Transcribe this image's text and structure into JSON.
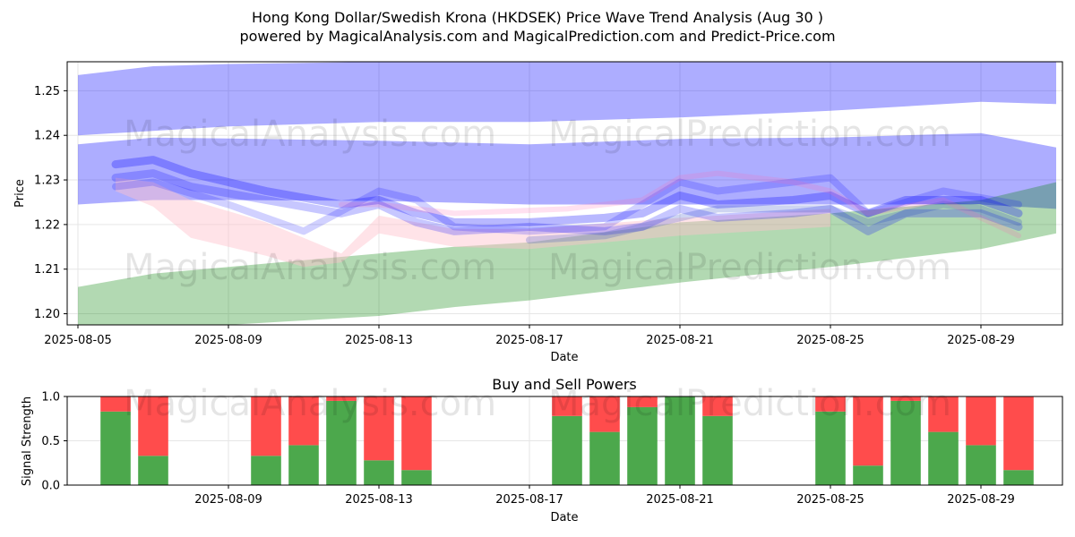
{
  "chart_data": [
    {
      "type": "area",
      "title": "Hong Kong Dollar/Swedish Krona (HKDSEK) Price Wave Trend Analysis (Aug 30 )",
      "subtitle": "powered by MagicalAnalysis.com and MagicalPrediction.com and Predict-Price.com",
      "xlabel": "Date",
      "ylabel": "Price",
      "ylim": [
        1.1975,
        1.2565
      ],
      "y_ticks": [
        1.2,
        1.21,
        1.22,
        1.23,
        1.24,
        1.25
      ],
      "y_tick_labels": [
        "1.20",
        "1.21",
        "1.22",
        "1.23",
        "1.24",
        "1.25"
      ],
      "x_ticks": [
        "2025-08-05",
        "2025-08-09",
        "2025-08-13",
        "2025-08-17",
        "2025-08-21",
        "2025-08-25",
        "2025-08-29"
      ],
      "watermarks": [
        "MagicalAnalysis.com",
        "MagicalPrediction.com",
        "MagicalAnalysis.com",
        "MagicalPrediction.com"
      ],
      "grid": true,
      "bands": [
        {
          "color": "#0000ff",
          "opacity": 0.32,
          "x": [
            "2025-08-05",
            "2025-08-07",
            "2025-08-09",
            "2025-08-13",
            "2025-08-17",
            "2025-08-21",
            "2025-08-25",
            "2025-08-29",
            "2025-08-31"
          ],
          "upper": [
            1.2535,
            1.2555,
            1.256,
            1.2565,
            1.2565,
            1.2565,
            1.2565,
            1.2565,
            1.2565
          ],
          "lower": [
            1.24,
            1.241,
            1.242,
            1.243,
            1.243,
            1.244,
            1.2455,
            1.2475,
            1.247
          ]
        },
        {
          "color": "#0000ff",
          "opacity": 0.32,
          "x": [
            "2025-08-05",
            "2025-08-07",
            "2025-08-09",
            "2025-08-13",
            "2025-08-17",
            "2025-08-21",
            "2025-08-25",
            "2025-08-29",
            "2025-08-31"
          ],
          "upper": [
            1.238,
            1.2395,
            1.2393,
            1.2388,
            1.238,
            1.2392,
            1.2395,
            1.2405,
            1.2373
          ],
          "lower": [
            1.2245,
            1.2255,
            1.2255,
            1.2253,
            1.2245,
            1.2245,
            1.2245,
            1.2245,
            1.2235
          ]
        },
        {
          "color": "#008000",
          "opacity": 0.3,
          "x": [
            "2025-08-05",
            "2025-08-07",
            "2025-08-09",
            "2025-08-13",
            "2025-08-15",
            "2025-08-17",
            "2025-08-21",
            "2025-08-25",
            "2025-08-29",
            "2025-08-31"
          ],
          "upper": [
            1.206,
            1.209,
            1.2105,
            1.2135,
            1.215,
            1.216,
            1.2205,
            1.2225,
            1.2255,
            1.2295
          ],
          "lower": [
            1.1975,
            1.1975,
            1.1975,
            1.1995,
            1.2015,
            1.203,
            1.207,
            1.2105,
            1.2145,
            1.218
          ]
        },
        {
          "color": "#ffc0cb",
          "opacity": 0.45,
          "x": [
            "2025-08-06",
            "2025-08-07",
            "2025-08-08",
            "2025-08-10",
            "2025-08-11",
            "2025-08-12",
            "2025-08-13",
            "2025-08-15",
            "2025-08-17",
            "2025-08-21",
            "2025-08-25"
          ],
          "upper": [
            1.2305,
            1.2295,
            1.2255,
            1.2205,
            1.217,
            1.2135,
            1.222,
            1.219,
            1.219,
            1.2215,
            1.2235
          ],
          "lower": [
            1.2275,
            1.224,
            1.217,
            1.213,
            1.2105,
            1.2115,
            1.218,
            1.215,
            1.2145,
            1.2175,
            1.2195
          ]
        }
      ],
      "series": [
        {
          "color": "#0000ff",
          "opacity": 0.28,
          "width": 9,
          "x": [
            "2025-08-06",
            "2025-08-07",
            "2025-08-08",
            "2025-08-10",
            "2025-08-12",
            "2025-08-13",
            "2025-08-14",
            "2025-08-15",
            "2025-08-17",
            "2025-08-19",
            "2025-08-20",
            "2025-08-21",
            "2025-08-22",
            "2025-08-24",
            "2025-08-25",
            "2025-08-26",
            "2025-08-27",
            "2025-08-29",
            "2025-08-30"
          ],
          "y": [
            1.2335,
            1.2345,
            1.2315,
            1.2275,
            1.2245,
            1.2255,
            1.2225,
            1.2205,
            1.2205,
            1.2215,
            1.2225,
            1.2265,
            1.2245,
            1.2255,
            1.2265,
            1.2225,
            1.2255,
            1.2255,
            1.2225
          ]
        },
        {
          "color": "#0000ff",
          "opacity": 0.22,
          "width": 9,
          "x": [
            "2025-08-06",
            "2025-08-07",
            "2025-08-08",
            "2025-08-10",
            "2025-08-12",
            "2025-08-13",
            "2025-08-14",
            "2025-08-15",
            "2025-08-17",
            "2025-08-19",
            "2025-08-20",
            "2025-08-21",
            "2025-08-22",
            "2025-08-24",
            "2025-08-25",
            "2025-08-26",
            "2025-08-27",
            "2025-08-29",
            "2025-08-30"
          ],
          "y": [
            1.2305,
            1.2315,
            1.2285,
            1.2255,
            1.2225,
            1.2245,
            1.2205,
            1.2185,
            1.2195,
            1.2185,
            1.2195,
            1.2235,
            1.2215,
            1.2225,
            1.2235,
            1.2185,
            1.2225,
            1.2225,
            1.2195
          ]
        },
        {
          "color": "#0000ff",
          "opacity": 0.18,
          "width": 8,
          "x": [
            "2025-08-06",
            "2025-08-07",
            "2025-08-09",
            "2025-08-11",
            "2025-08-13",
            "2025-08-14",
            "2025-08-15",
            "2025-08-17",
            "2025-08-19",
            "2025-08-21",
            "2025-08-22",
            "2025-08-24",
            "2025-08-25",
            "2025-08-26",
            "2025-08-28",
            "2025-08-30"
          ],
          "y": [
            1.2285,
            1.2295,
            1.2245,
            1.2185,
            1.2275,
            1.2255,
            1.2195,
            1.2185,
            1.2195,
            1.2295,
            1.2275,
            1.2295,
            1.2305,
            1.2225,
            1.2275,
            1.2245
          ]
        },
        {
          "color": "#1e40c0",
          "opacity": 0.22,
          "width": 8,
          "x": [
            "2025-08-17",
            "2025-08-19",
            "2025-08-21",
            "2025-08-22",
            "2025-08-24",
            "2025-08-25",
            "2025-08-26",
            "2025-08-28",
            "2025-08-29",
            "2025-08-30"
          ],
          "y": [
            1.2165,
            1.2175,
            1.2215,
            1.2235,
            1.2235,
            1.2235,
            1.2205,
            1.2245,
            1.2235,
            1.2205
          ]
        },
        {
          "color": "#ff69b4",
          "opacity": 0.2,
          "width": 6,
          "x": [
            "2025-08-12",
            "2025-08-13",
            "2025-08-15",
            "2025-08-18",
            "2025-08-20",
            "2025-08-21",
            "2025-08-22",
            "2025-08-24",
            "2025-08-25",
            "2025-08-26",
            "2025-08-28",
            "2025-08-30"
          ],
          "y": [
            1.2245,
            1.2245,
            1.2225,
            1.2235,
            1.2255,
            1.2305,
            1.2315,
            1.2295,
            1.2275,
            1.2225,
            1.2255,
            1.2175
          ]
        }
      ]
    },
    {
      "type": "bar",
      "title": "Buy and Sell Powers",
      "xlabel": "Date",
      "ylabel": "Signal Strength",
      "ylim": [
        0,
        1.0
      ],
      "y_ticks": [
        0.0,
        0.5,
        1.0
      ],
      "y_tick_labels": [
        "0.0",
        "0.5",
        "1.0"
      ],
      "x_ticks": [
        "2025-08-09",
        "2025-08-13",
        "2025-08-17",
        "2025-08-21",
        "2025-08-25",
        "2025-08-29"
      ],
      "grid": true,
      "buy_color": "#4ca84c",
      "sell_color": "#ff4c4c",
      "categories": [
        "2025-08-06",
        "2025-08-07",
        "2025-08-10",
        "2025-08-11",
        "2025-08-12",
        "2025-08-13",
        "2025-08-14",
        "2025-08-18",
        "2025-08-19",
        "2025-08-20",
        "2025-08-21",
        "2025-08-22",
        "2025-08-25",
        "2025-08-26",
        "2025-08-27",
        "2025-08-28",
        "2025-08-29",
        "2025-08-30"
      ],
      "buy": [
        0.83,
        0.33,
        0.33,
        0.45,
        0.95,
        0.28,
        0.17,
        0.78,
        0.6,
        0.88,
        1.0,
        0.78,
        0.83,
        0.22,
        0.95,
        0.6,
        0.45,
        0.17
      ]
    }
  ]
}
